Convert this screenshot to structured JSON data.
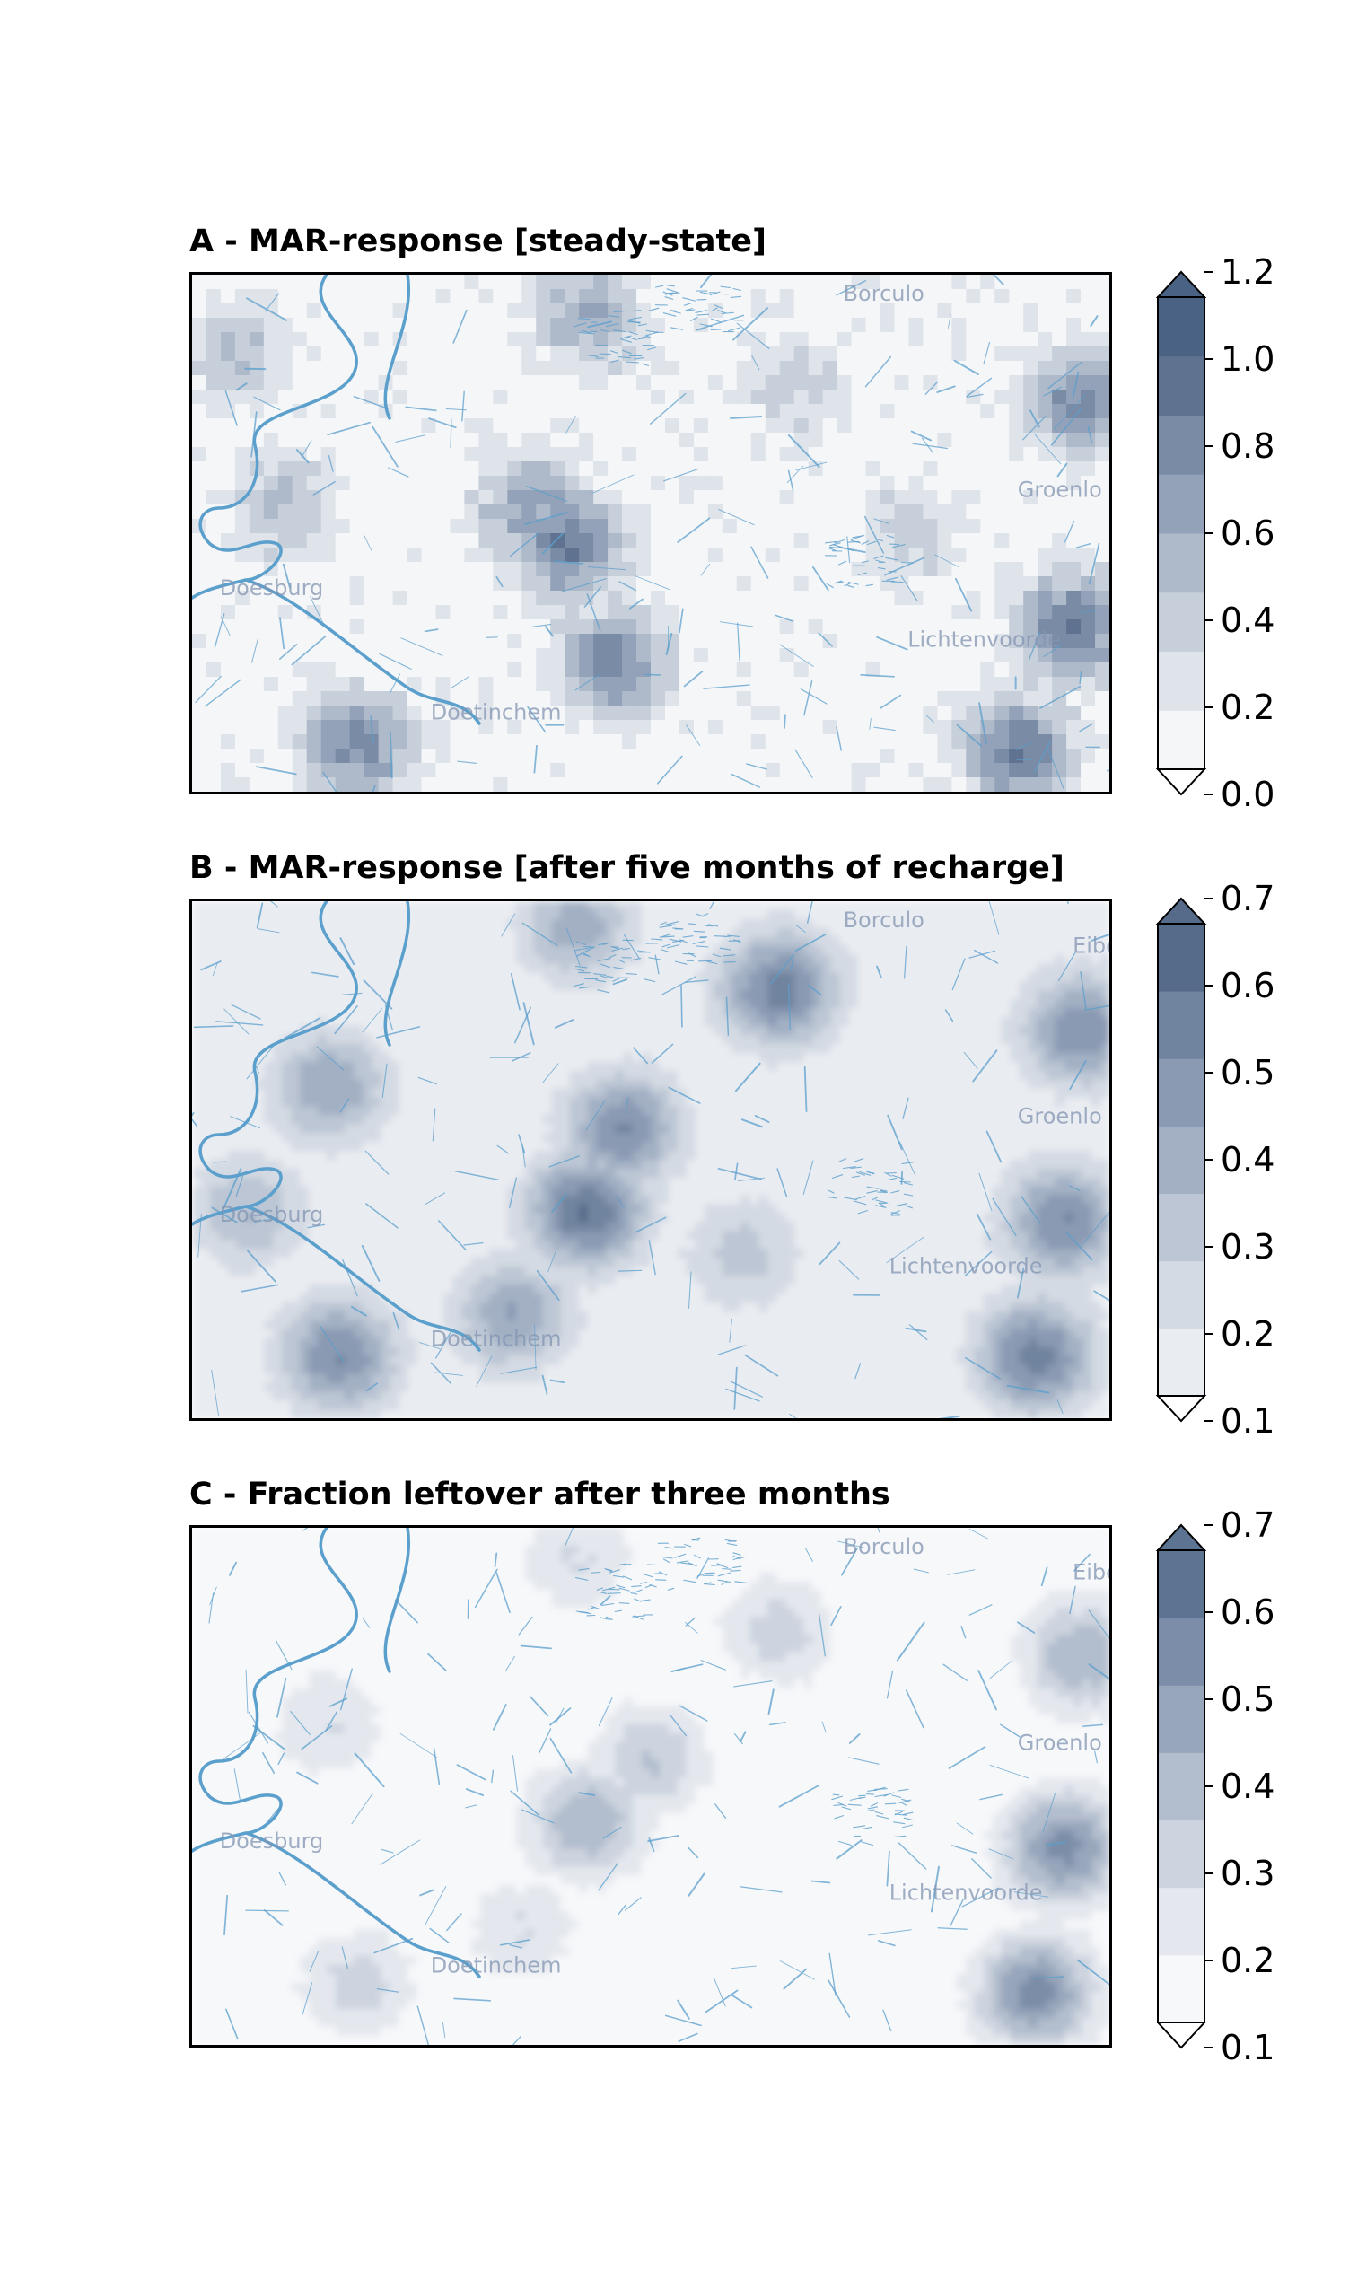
{
  "chart_data": [
    {
      "type": "heatmap",
      "title": "A - MAR-response [steady-state]",
      "style": "pixel-grid",
      "colorbar": {
        "ticks": [
          "0.0",
          "0.2",
          "0.4",
          "0.6",
          "0.8",
          "1.0",
          "1.2"
        ],
        "range": [
          0.0,
          1.2
        ],
        "extend": "both",
        "colors": [
          "#f5f6f8",
          "#dfe3ea",
          "#c7cfda",
          "#aeb9ca",
          "#93a2b8",
          "#7a8ba5",
          "#5f7391",
          "#4a6284"
        ]
      },
      "basemap_labels": [
        "Borculo",
        "Groenlo",
        "Doesburg",
        "Lichtenvoorde",
        "Doetinchem"
      ],
      "hotspots": [
        {
          "u": 0.41,
          "v": 0.52,
          "value": 1.2
        },
        {
          "u": 0.46,
          "v": 0.75,
          "value": 1.1
        },
        {
          "u": 0.37,
          "v": 0.45,
          "value": 0.9
        },
        {
          "u": 0.18,
          "v": 0.91,
          "value": 1.1
        },
        {
          "u": 0.96,
          "v": 0.68,
          "value": 1.2
        },
        {
          "u": 0.97,
          "v": 0.25,
          "value": 1.1
        },
        {
          "u": 0.9,
          "v": 0.92,
          "value": 1.2
        },
        {
          "u": 0.43,
          "v": 0.08,
          "value": 0.8
        },
        {
          "u": 0.1,
          "v": 0.45,
          "value": 0.7
        },
        {
          "u": 0.66,
          "v": 0.22,
          "value": 0.5
        },
        {
          "u": 0.78,
          "v": 0.5,
          "value": 0.5
        },
        {
          "u": 0.05,
          "v": 0.15,
          "value": 0.6
        }
      ]
    },
    {
      "type": "heatmap",
      "title": "B - MAR-response [after five months of recharge]",
      "style": "smooth",
      "colorbar": {
        "ticks": [
          "0.1",
          "0.2",
          "0.3",
          "0.4",
          "0.5",
          "0.6",
          "0.7"
        ],
        "range": [
          0.1,
          0.7
        ],
        "extend": "both",
        "colors": [
          "#e9ecf1",
          "#d4dae3",
          "#bcc6d4",
          "#a3b0c4",
          "#8a9ab2",
          "#71849f",
          "#566b8a"
        ]
      },
      "basemap_labels": [
        "Borculo",
        "Eibergen",
        "Groenlo",
        "Doesburg",
        "Lichtenvoorde",
        "Doetinchem"
      ],
      "hotspots": [
        {
          "u": 0.43,
          "v": 0.6,
          "value": 0.7
        },
        {
          "u": 0.47,
          "v": 0.44,
          "value": 0.6
        },
        {
          "u": 0.64,
          "v": 0.17,
          "value": 0.65
        },
        {
          "u": 0.16,
          "v": 0.88,
          "value": 0.6
        },
        {
          "u": 0.35,
          "v": 0.8,
          "value": 0.5
        },
        {
          "u": 0.95,
          "v": 0.62,
          "value": 0.6
        },
        {
          "u": 0.92,
          "v": 0.88,
          "value": 0.65
        },
        {
          "u": 0.97,
          "v": 0.25,
          "value": 0.6
        },
        {
          "u": 0.15,
          "v": 0.36,
          "value": 0.5
        },
        {
          "u": 0.42,
          "v": 0.05,
          "value": 0.45
        },
        {
          "u": 0.06,
          "v": 0.6,
          "value": 0.4
        },
        {
          "u": 0.6,
          "v": 0.68,
          "value": 0.35
        }
      ]
    },
    {
      "type": "heatmap",
      "title": "C - Fraction leftover after three months",
      "style": "smooth",
      "colorbar": {
        "ticks": [
          "0.1",
          "0.2",
          "0.3",
          "0.4",
          "0.5",
          "0.6",
          "0.7"
        ],
        "range": [
          0.1,
          0.7
        ],
        "extend": "both",
        "colors": [
          "#f7f8fa",
          "#e4e8ee",
          "#cdd4df",
          "#b2bdcd",
          "#97a6bb",
          "#7b8da8",
          "#5d7392"
        ]
      },
      "basemap_labels": [
        "Borculo",
        "Eibergen",
        "Groenlo",
        "Doesburg",
        "Lichtenvoorde",
        "Doetinchem"
      ],
      "hotspots": [
        {
          "u": 0.43,
          "v": 0.57,
          "value": 0.5
        },
        {
          "u": 0.5,
          "v": 0.45,
          "value": 0.4
        },
        {
          "u": 0.64,
          "v": 0.2,
          "value": 0.35
        },
        {
          "u": 0.95,
          "v": 0.62,
          "value": 0.65
        },
        {
          "u": 0.92,
          "v": 0.9,
          "value": 0.65
        },
        {
          "u": 0.97,
          "v": 0.25,
          "value": 0.5
        },
        {
          "u": 0.18,
          "v": 0.88,
          "value": 0.35
        },
        {
          "u": 0.36,
          "v": 0.78,
          "value": 0.3
        },
        {
          "u": 0.15,
          "v": 0.38,
          "value": 0.3
        },
        {
          "u": 0.42,
          "v": 0.06,
          "value": 0.3
        }
      ]
    }
  ]
}
